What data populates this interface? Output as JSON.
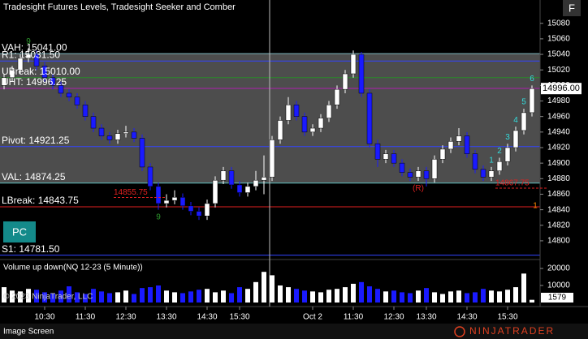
{
  "chart_data": {
    "type": "candlestick",
    "title": "Tradesight Futures Levels, Tradesight Seeker and Comber",
    "volume_title": "Volume up down(NQ 12-23 (5 Minute))",
    "copyright": "© 2023 NinjaTrader, LLC",
    "footer": "Image Screen",
    "brand": "NINJATRADER",
    "button_f": "F",
    "button_pc": "PC",
    "up_color": "#ffffff",
    "down_color": "#1a1aff",
    "ylim": [
      14778,
      15110
    ],
    "yticks": [
      15080,
      15060,
      15040,
      15020,
      15000,
      14980,
      14960,
      14940,
      14920,
      14900,
      14880,
      14860,
      14840,
      14820,
      14800
    ],
    "vlim": [
      0,
      24300
    ],
    "vticks": [
      20000,
      10000
    ],
    "last_price": {
      "value": 14996,
      "label": "14996.00"
    },
    "last_volume": 1579,
    "xticks": [
      {
        "value": 5,
        "label": "10:30"
      },
      {
        "value": 10,
        "label": "11:30"
      },
      {
        "value": 15,
        "label": "12:30"
      },
      {
        "value": 20,
        "label": "13:30"
      },
      {
        "value": 25,
        "label": "14:30"
      },
      {
        "value": 29,
        "label": "15:30"
      },
      {
        "value": 38,
        "label": "Oct 2"
      },
      {
        "value": 43,
        "label": "11:30"
      },
      {
        "value": 48,
        "label": "12:30"
      },
      {
        "value": 52,
        "label": "13:30"
      },
      {
        "value": 57,
        "label": "14:30"
      },
      {
        "value": 62,
        "label": "15:30"
      }
    ],
    "levels": [
      {
        "label": "VAH: 15041.00",
        "value": 15041,
        "color": "#7fb8c0"
      },
      {
        "label": "R1: 15031.50",
        "value": 15031.5,
        "color": "#3344ff"
      },
      {
        "label": "UBreak: 15010.00",
        "value": 15010,
        "color": "#2a8a2a"
      },
      {
        "label": "UHT: 14996.25",
        "value": 14996.25,
        "color": "#b020b0"
      },
      {
        "label": "Pivot: 14921.25",
        "value": 14921.25,
        "color": "#3344ff"
      },
      {
        "label": "VAL: 14874.25",
        "value": 14874.25,
        "color": "#60c0c0"
      },
      {
        "label": "LBreak: 14843.75",
        "value": 14843.75,
        "color": "#e02020"
      },
      {
        "label": "S1: 14781.50",
        "value": 14781.5,
        "color": "#3344ff"
      }
    ],
    "price_labels": [
      {
        "text": "14855.75",
        "value": 14855.75,
        "candle": 14
      },
      {
        "text": "14867.75",
        "value": 14867.75,
        "candle": 61
      }
    ],
    "annotations": [
      {
        "text": "9",
        "candle": 3,
        "side": "above",
        "color": "#2e9b2e"
      },
      {
        "text": "9",
        "candle": 19,
        "side": "below",
        "color": "#2e9b2e"
      },
      {
        "text": "(R)",
        "candle": 51,
        "side": "below",
        "color": "#e02020"
      },
      {
        "text": "1",
        "candle": 60,
        "side": "above",
        "color": "#33dddd"
      },
      {
        "text": "2",
        "candle": 61,
        "side": "above",
        "color": "#33dddd"
      },
      {
        "text": "3",
        "candle": 62,
        "side": "above",
        "color": "#33dddd"
      },
      {
        "text": "4",
        "candle": 63,
        "side": "above",
        "color": "#33dddd"
      },
      {
        "text": "5",
        "candle": 64,
        "side": "above",
        "color": "#33dddd"
      },
      {
        "text": "6",
        "candle": 65,
        "side": "above",
        "color": "#33dddd"
      }
    ],
    "lbreak_marker": "1",
    "open": [
      15000,
      15010,
      15020,
      15035,
      15040,
      15025,
      15010,
      15000,
      14990,
      14985,
      14975,
      14960,
      14945,
      14935,
      14930,
      14938,
      14940,
      14932,
      14895,
      14870,
      14848,
      14852,
      14856,
      14845,
      14838,
      14832,
      14848,
      14878,
      14890,
      14872,
      14862,
      14870,
      14878,
      14882,
      14930,
      14955,
      14975,
      14960,
      14940,
      14945,
      14958,
      14975,
      14995,
      15015,
      15040,
      14990,
      14925,
      14905,
      14912,
      14900,
      14888,
      14882,
      14890,
      14880,
      14905,
      14918,
      14928,
      14935,
      14912,
      14892,
      14882,
      14890,
      14902,
      14920,
      14942,
      14965
    ],
    "high": [
      15015,
      15025,
      15040,
      15048,
      15045,
      15030,
      15015,
      15005,
      14995,
      14990,
      14980,
      14965,
      14950,
      14940,
      14943,
      14948,
      14945,
      14937,
      14900,
      14875,
      14860,
      14865,
      14861,
      14850,
      14843,
      14853,
      14883,
      14895,
      14895,
      14877,
      14875,
      14890,
      14910,
      14935,
      14960,
      14985,
      14980,
      14965,
      14950,
      14963,
      14980,
      15000,
      15020,
      15045,
      15043,
      14995,
      14930,
      14917,
      14917,
      14905,
      14893,
      14895,
      14895,
      14910,
      14923,
      14933,
      14945,
      14940,
      14917,
      14897,
      14895,
      14907,
      14925,
      14947,
      14970,
      15000
    ],
    "low": [
      14995,
      15005,
      15015,
      15030,
      15020,
      15005,
      14995,
      14985,
      14980,
      14970,
      14955,
      14940,
      14930,
      14925,
      14925,
      14933,
      14927,
      14890,
      14865,
      14840,
      14843,
      14847,
      14840,
      14833,
      14827,
      14827,
      14843,
      14873,
      14867,
      14857,
      14857,
      14865,
      14860,
      14877,
      14925,
      14950,
      14955,
      14935,
      14935,
      14940,
      14953,
      14970,
      14990,
      15010,
      14985,
      14920,
      14895,
      14900,
      14895,
      14883,
      14877,
      14877,
      14870,
      14875,
      14900,
      14913,
      14923,
      14907,
      14887,
      14877,
      14877,
      14885,
      14897,
      14915,
      14937,
      14960
    ],
    "close": [
      15010,
      15020,
      15035,
      15040,
      15025,
      15010,
      15000,
      14990,
      14985,
      14975,
      14960,
      14945,
      14935,
      14930,
      14938,
      14940,
      14932,
      14895,
      14870,
      14848,
      14852,
      14856,
      14845,
      14838,
      14832,
      14848,
      14878,
      14890,
      14872,
      14862,
      14870,
      14878,
      14882,
      14930,
      14955,
      14975,
      14960,
      14940,
      14945,
      14958,
      14975,
      14995,
      15015,
      15040,
      14990,
      14925,
      14905,
      14912,
      14900,
      14888,
      14882,
      14890,
      14880,
      14905,
      14918,
      14928,
      14935,
      14912,
      14892,
      14882,
      14890,
      14902,
      14920,
      14942,
      14965,
      14996
    ],
    "volume": [
      9000,
      7000,
      6500,
      8000,
      7500,
      6000,
      5500,
      7000,
      9500,
      6000,
      5000,
      8000,
      6500,
      5500,
      6000,
      7000,
      5000,
      8500,
      9000,
      10000,
      7000,
      6000,
      5500,
      6500,
      7500,
      8000,
      6000,
      7000,
      5500,
      9000,
      8000,
      12000,
      18000,
      16000,
      10000,
      9000,
      8000,
      7000,
      6500,
      6000,
      7500,
      8000,
      9000,
      11000,
      12000,
      9500,
      8000,
      6500,
      7000,
      6000,
      5500,
      7000,
      8500,
      6000,
      5000,
      6500,
      7000,
      5500,
      6000,
      8000,
      7000,
      6500,
      7500,
      9000,
      17000,
      1579
    ]
  }
}
